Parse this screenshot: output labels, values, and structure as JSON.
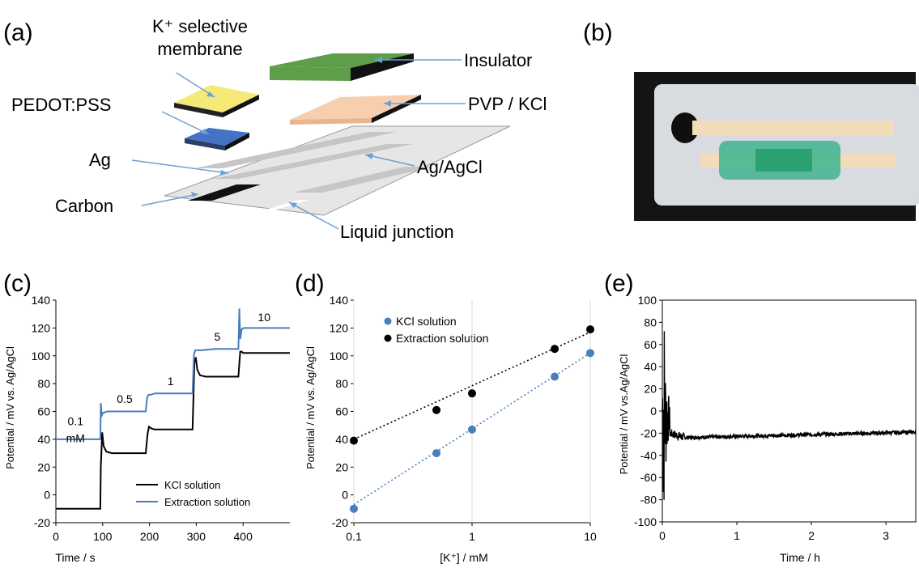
{
  "panel_labels": {
    "a": "(a)",
    "b": "(b)",
    "c": "(c)",
    "d": "(d)",
    "e": "(e)"
  },
  "schematic": {
    "labels": {
      "membrane_line1": "K⁺ selective",
      "membrane_line2": "membrane",
      "insulator": "Insulator",
      "pedot": "PEDOT:PSS",
      "pvp": "PVP / KCl",
      "ag": "Ag",
      "agagcl": "Ag/AgCl",
      "carbon": "Carbon",
      "junction": "Liquid junction"
    },
    "colors": {
      "membrane": "#f5ea78",
      "insulator": "#5e9e4a",
      "pedot": "#4472c4",
      "pvp": "#f8cfae",
      "substrate": "#e6e6e6",
      "electrode": "#c6c6c6",
      "carbon": "#111111",
      "arrow": "#6fa0d4"
    }
  },
  "chart_data": [
    {
      "id": "c",
      "type": "line",
      "xlabel": "Time / s",
      "ylabel": "Potential / mV vs. Ag/AgCl",
      "xlim": [
        0,
        500
      ],
      "ylim": [
        -20,
        140
      ],
      "xticks": [
        0,
        100,
        200,
        300,
        400
      ],
      "yticks": [
        -20,
        0,
        20,
        40,
        60,
        80,
        100,
        120,
        140
      ],
      "legend": "bottom-right",
      "annotations": [
        {
          "text": "0.1",
          "x": 42,
          "y": 50
        },
        {
          "text": "mM",
          "x": 42,
          "y": 38
        },
        {
          "text": "0.5",
          "x": 147,
          "y": 66
        },
        {
          "text": "1",
          "x": 245,
          "y": 79
        },
        {
          "text": "5",
          "x": 345,
          "y": 111
        },
        {
          "text": "10",
          "x": 445,
          "y": 125
        }
      ],
      "series": [
        {
          "name": "KCl solution",
          "color": "#000000",
          "x": [
            0,
            95,
            96,
            99,
            102,
            108,
            120,
            150,
            192,
            196,
            199,
            203,
            210,
            230,
            260,
            292,
            296,
            299,
            302,
            308,
            320,
            350,
            390,
            394,
            397,
            400,
            410,
            430,
            460,
            500
          ],
          "y": [
            -10,
            -10,
            20,
            45,
            35,
            31,
            30,
            30,
            30,
            44,
            49,
            48,
            47,
            47,
            47,
            47,
            95,
            99,
            90,
            86,
            85,
            85,
            85,
            103,
            103,
            102,
            102,
            102,
            102,
            102
          ]
        },
        {
          "name": "Extraction solution",
          "color": "#4a7ebb",
          "x": [
            0,
            95,
            96,
            98,
            101,
            110,
            130,
            160,
            192,
            195,
            198,
            202,
            212,
            250,
            292,
            295,
            298,
            302,
            312,
            340,
            390,
            392,
            394,
            397,
            401,
            410,
            440,
            500
          ],
          "y": [
            40,
            40,
            66,
            57,
            59,
            60,
            60,
            60,
            60,
            70,
            72,
            72,
            73,
            73,
            73,
            101,
            104,
            104,
            104,
            105,
            105,
            134,
            112,
            119,
            120,
            120,
            120,
            120
          ]
        }
      ]
    },
    {
      "id": "d",
      "type": "scatter",
      "xlabel": "[K⁺] / mM",
      "ylabel": "Potential / mV vs. Ag/AgCl",
      "xscale": "log",
      "xlim": [
        0.1,
        10
      ],
      "ylim": [
        -20,
        140
      ],
      "xticks": [
        0.1,
        1,
        10
      ],
      "yticks": [
        -20,
        0,
        20,
        40,
        60,
        80,
        100,
        120,
        140
      ],
      "grid": "vertical",
      "legend": "top-left",
      "series": [
        {
          "name": "KCl solution",
          "color": "#4a7ebb",
          "x": [
            0.1,
            0.5,
            1,
            5,
            10
          ],
          "y": [
            -10,
            30,
            47,
            85,
            102
          ],
          "trendline": [
            -7,
            102
          ]
        },
        {
          "name": "Extraction solution",
          "color": "#000000",
          "x": [
            0.1,
            0.5,
            1,
            5,
            10
          ],
          "y": [
            39,
            61,
            73,
            105,
            119
          ],
          "trendline": [
            40,
            117
          ]
        }
      ]
    },
    {
      "id": "e",
      "type": "line",
      "xlabel": "Time / h",
      "ylabel": "Potential / mV vs.Ag/AgCl",
      "xlim": [
        0,
        3.4
      ],
      "ylim": [
        -100,
        100
      ],
      "xticks": [
        0,
        1,
        2,
        3
      ],
      "yticks": [
        -100,
        -80,
        -60,
        -40,
        -20,
        0,
        20,
        40,
        60,
        80,
        100
      ],
      "series": [
        {
          "name": "",
          "color": "#000000"
        }
      ]
    }
  ]
}
